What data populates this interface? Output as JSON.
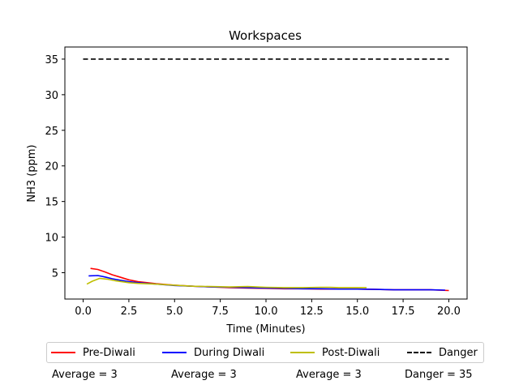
{
  "chart_data": {
    "type": "line",
    "title": "Workspaces",
    "xlabel": "Time (Minutes)",
    "ylabel": "NH3 (ppm)",
    "xlim": [
      -1.0,
      21.0
    ],
    "ylim": [
      1.3,
      36.7
    ],
    "xticks": [
      "0.0",
      "2.5",
      "5.0",
      "7.5",
      "10.0",
      "12.5",
      "15.0",
      "17.5",
      "20.0"
    ],
    "yticks": [
      "5",
      "10",
      "15",
      "20",
      "25",
      "30",
      "35"
    ],
    "grid": false,
    "legend_position": "below",
    "series": [
      {
        "name": "Pre-Diwali",
        "color": "#ff0000",
        "style": "solid",
        "x": [
          0.4,
          0.8,
          1.2,
          1.6,
          2.0,
          2.5,
          3.0,
          4.0,
          5.0,
          6.0,
          7.0,
          8.0,
          9.0,
          10.0,
          11.0,
          12.0,
          13.0,
          14.0,
          15.0,
          16.0,
          17.0,
          18.0,
          19.0,
          20.0
        ],
        "y": [
          5.6,
          5.45,
          5.1,
          4.7,
          4.4,
          4.0,
          3.75,
          3.45,
          3.25,
          3.1,
          3.0,
          2.9,
          2.85,
          2.8,
          2.75,
          2.75,
          2.7,
          2.7,
          2.7,
          2.65,
          2.6,
          2.6,
          2.6,
          2.5
        ]
      },
      {
        "name": "During Diwali",
        "color": "#0000ff",
        "style": "solid",
        "x": [
          0.3,
          0.8,
          1.2,
          1.6,
          2.0,
          2.5,
          3.0,
          4.0,
          5.0,
          6.0,
          7.0,
          8.0,
          9.0,
          10.0,
          11.0,
          12.0,
          13.0,
          14.0,
          15.0,
          16.0,
          17.0,
          18.0,
          19.0,
          19.8
        ],
        "y": [
          4.55,
          4.6,
          4.4,
          4.15,
          3.95,
          3.75,
          3.6,
          3.4,
          3.2,
          3.1,
          3.0,
          2.95,
          2.9,
          2.85,
          2.8,
          2.75,
          2.75,
          2.7,
          2.7,
          2.65,
          2.6,
          2.6,
          2.6,
          2.55
        ]
      },
      {
        "name": "Post-Diwali",
        "color": "#bfbf00",
        "style": "solid",
        "x": [
          0.2,
          0.5,
          0.9,
          1.3,
          1.8,
          2.5,
          3.0,
          4.0,
          5.0,
          6.0,
          7.0,
          8.0,
          9.0,
          9.5,
          10.0,
          11.0,
          12.0,
          13.0,
          13.5,
          14.0,
          15.0,
          15.5
        ],
        "y": [
          3.4,
          3.8,
          4.2,
          4.1,
          3.85,
          3.6,
          3.5,
          3.4,
          3.25,
          3.1,
          3.05,
          3.0,
          3.05,
          3.0,
          2.95,
          2.9,
          2.9,
          2.95,
          2.95,
          2.9,
          2.9,
          2.9
        ]
      },
      {
        "name": "Danger",
        "color": "#000000",
        "style": "dashed",
        "x": [
          0.0,
          20.0
        ],
        "y": [
          35,
          35
        ]
      }
    ],
    "averages": [
      "Average = 3",
      "Average = 3",
      "Average = 3",
      "Danger = 35"
    ]
  }
}
